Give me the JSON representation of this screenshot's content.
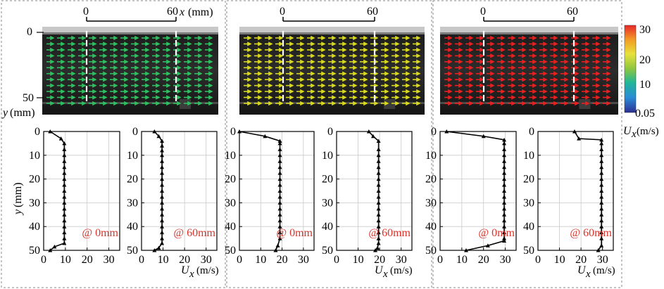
{
  "colorbar": {
    "ticks": [
      "30",
      "20",
      "10",
      "0.05"
    ],
    "tick_values": [
      30,
      20,
      10,
      0.05
    ],
    "label_var": "U",
    "label_sub": "x",
    "label_unit": "(m/s)",
    "colors": [
      "#2b2f93",
      "#2b8bd6",
      "#1fb69a",
      "#8cc63f",
      "#e7e23a",
      "#f39a24",
      "#e8272a"
    ]
  },
  "field_axes": {
    "x_label_var": "x",
    "x_label_unit": "(mm)",
    "x_ticks": [
      "0",
      "60"
    ],
    "y_label_var": "y",
    "y_label_unit": "(mm)",
    "y_ticks": [
      "0",
      "50"
    ]
  },
  "cases": [
    {
      "id": "case-1",
      "vector_color": "#2fbf5f",
      "vector_speed": 10
    },
    {
      "id": "case-2",
      "vector_color": "#d8d820",
      "vector_speed": 20
    },
    {
      "id": "case-3",
      "vector_color": "#e82020",
      "vector_speed": 30
    }
  ],
  "profile_axes": {
    "y_label_var": "y",
    "y_label_unit": "(mm)",
    "x_label_var": "U",
    "x_label_sub": "x",
    "x_label_unit": "(m/s)",
    "y_ticks": [
      "0",
      "10",
      "20",
      "30",
      "40",
      "50"
    ],
    "x_ticks": [
      "0",
      "10",
      "20",
      "30"
    ],
    "xlim": [
      0,
      35
    ],
    "ylim": [
      0,
      50
    ]
  },
  "chart_data": [
    {
      "type": "line",
      "panel": "case-1 @ 0mm",
      "annotation": "@ 0mm",
      "x": [
        3,
        8,
        9.5,
        9.5,
        9.5,
        9.5,
        9.5,
        9.5,
        9.5,
        9.5,
        9.5,
        9.5,
        9.5,
        9.5,
        9.5,
        9.5,
        9.5,
        9.5,
        9.5,
        9.5,
        5,
        3
      ],
      "y": [
        0,
        3,
        5,
        7.5,
        10,
        12.5,
        15,
        17.5,
        20,
        22.5,
        25,
        27.5,
        30,
        32.5,
        35,
        37.5,
        40,
        42.5,
        45,
        47,
        48.5,
        50
      ]
    },
    {
      "type": "line",
      "panel": "case-1 @ 60mm",
      "annotation": "@ 60mm",
      "x": [
        6,
        8,
        9.5,
        9.5,
        9.5,
        9.5,
        9.5,
        9.5,
        9.5,
        9.5,
        9.5,
        9.5,
        9.5,
        9.5,
        9.5,
        9.5,
        9.5,
        9.5,
        9.5,
        9.5,
        9.5,
        8,
        6
      ],
      "y": [
        0,
        2,
        4,
        6,
        8,
        10,
        12.5,
        15,
        17.5,
        20,
        22.5,
        25,
        27.5,
        30,
        32.5,
        35,
        37.5,
        40,
        42.5,
        45,
        47,
        49,
        50
      ]
    },
    {
      "type": "line",
      "panel": "case-2 @ 0mm",
      "annotation": "@ 0mm",
      "x": [
        0,
        12,
        19,
        19,
        19,
        19,
        19,
        19,
        19,
        19,
        19,
        19,
        19,
        19,
        19,
        19,
        19,
        19,
        19,
        19,
        18,
        17
      ],
      "y": [
        0,
        2,
        4,
        5,
        7.5,
        10,
        12.5,
        15,
        17.5,
        20,
        22.5,
        25,
        27.5,
        30,
        32.5,
        35,
        37.5,
        40,
        42.5,
        45,
        48,
        50
      ]
    },
    {
      "type": "line",
      "panel": "case-2 @ 60mm",
      "annotation": "@ 60mm",
      "x": [
        15,
        17,
        19.5,
        19.5,
        19.5,
        19.5,
        19.5,
        19.5,
        19.5,
        19.5,
        19.5,
        19.5,
        19.5,
        19.5,
        19.5,
        19.5,
        19.5,
        19.5,
        19.5,
        19.5,
        19,
        18
      ],
      "y": [
        0,
        2,
        4,
        7.5,
        10,
        12.5,
        15,
        17.5,
        20,
        22.5,
        25,
        27.5,
        30,
        32.5,
        35,
        37.5,
        40,
        42.5,
        45,
        47,
        49,
        50
      ]
    },
    {
      "type": "line",
      "panel": "case-3 @ 0mm",
      "annotation": "@ 0mm",
      "x": [
        3,
        20,
        29.5,
        29.5,
        29.5,
        29.5,
        29.5,
        29.5,
        29.5,
        29.5,
        29.5,
        29.5,
        29.5,
        29.5,
        29.5,
        29.5,
        29.5,
        29.5,
        29.5,
        29.5,
        29.5,
        22,
        12
      ],
      "y": [
        0,
        2,
        3.5,
        5,
        7.5,
        10,
        12.5,
        15,
        17.5,
        20,
        22.5,
        25,
        27.5,
        30,
        32.5,
        35,
        37.5,
        40,
        42.5,
        45,
        46,
        48,
        50
      ]
    },
    {
      "type": "line",
      "panel": "case-3 @ 60mm",
      "annotation": "@ 60mm",
      "x": [
        17,
        19,
        29.5,
        29.5,
        29.5,
        29.5,
        29.5,
        29.5,
        29.5,
        29.5,
        29.5,
        29.5,
        29.5,
        29.5,
        29.5,
        29.5,
        29.5,
        29.5,
        29.5,
        29.5,
        29.5,
        28
      ],
      "y": [
        0,
        3,
        3.5,
        5,
        7.5,
        10,
        12.5,
        15,
        17.5,
        20,
        22.5,
        25,
        27.5,
        30,
        32.5,
        35,
        37.5,
        40,
        42.5,
        45,
        48,
        50
      ]
    }
  ]
}
